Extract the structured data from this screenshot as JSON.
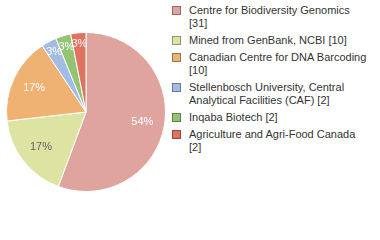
{
  "chart_data": {
    "type": "pie",
    "categories": [
      "Centre for Biodiversity Genomics [31]",
      "Mined from GenBank, NCBI [10]",
      "Canadian Centre for DNA Barcoding [10]",
      "Stellenbosch University, Central Analytical Facilities (CAF)  [2]",
      "Inqaba Biotech [2]",
      "Agriculture and Agri-Food Canada [2]"
    ],
    "values": [
      54,
      17,
      17,
      3,
      3,
      3
    ],
    "value_labels": [
      "54%",
      "17%",
      "17%",
      "3%",
      "3%",
      "3%"
    ],
    "colors": [
      "#e0a49f",
      "#dde3a2",
      "#f0b273",
      "#a3bce3",
      "#93c473",
      "#e0735f"
    ],
    "data_labels": true,
    "legend": "right"
  }
}
